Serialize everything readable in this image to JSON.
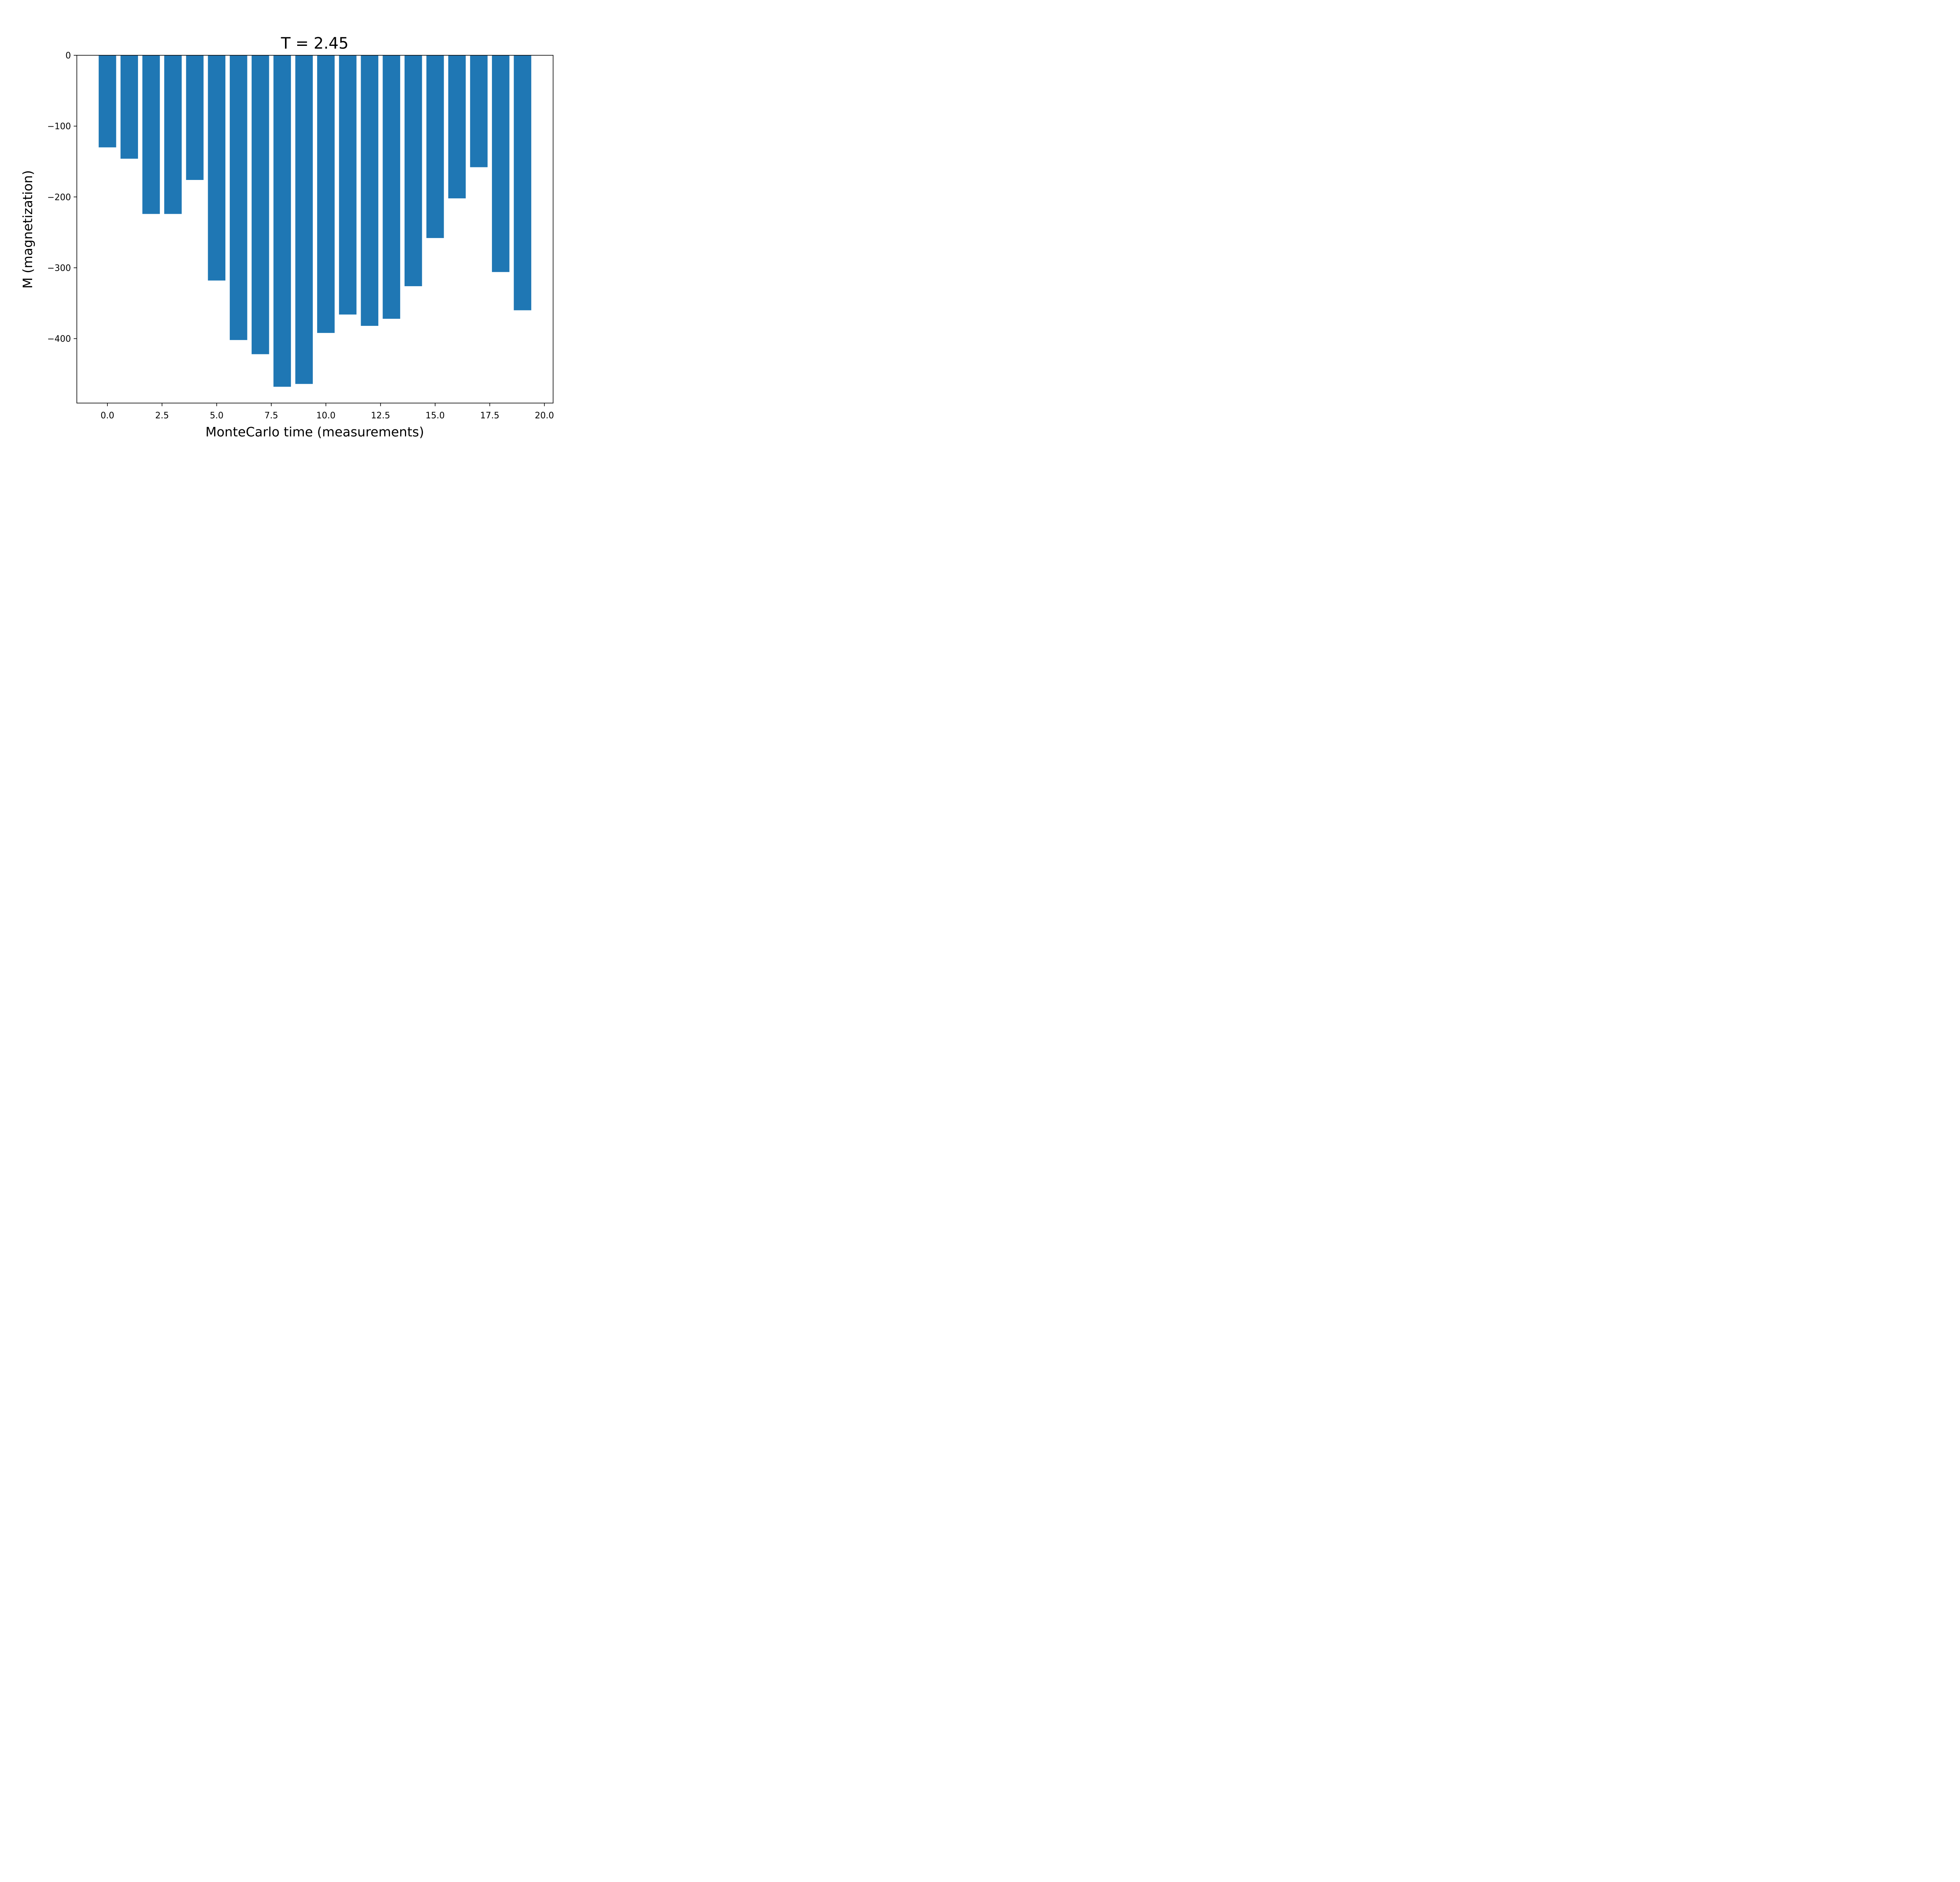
{
  "chart_data": {
    "type": "bar",
    "title": "T = 2.45",
    "xlabel": "MonteCarlo time (measurements)",
    "ylabel": "M (magnetization)",
    "x": [
      0,
      1,
      2,
      3,
      4,
      5,
      6,
      7,
      8,
      9,
      10,
      11,
      12,
      13,
      14,
      15,
      16,
      17,
      18,
      19
    ],
    "values": [
      -130,
      -146,
      -224,
      -224,
      -176,
      -318,
      -402,
      -422,
      -468,
      -464,
      -392,
      -366,
      -382,
      -372,
      -326,
      -258,
      -202,
      -158,
      -306,
      -360
    ],
    "xlim": [
      -1.4,
      20.4
    ],
    "ylim": [
      -491,
      0
    ],
    "xticks": [
      0.0,
      2.5,
      5.0,
      7.5,
      10.0,
      12.5,
      15.0,
      17.5,
      20.0
    ],
    "xtick_labels": [
      "0.0",
      "2.5",
      "5.0",
      "7.5",
      "10.0",
      "12.5",
      "15.0",
      "17.5",
      "20.0"
    ],
    "yticks": [
      0,
      -100,
      -200,
      -300,
      -400
    ],
    "ytick_labels": [
      "0",
      "−100",
      "−200",
      "−300",
      "−400"
    ],
    "bar_color": "#1f77b4",
    "grid": false,
    "legend": false
  }
}
